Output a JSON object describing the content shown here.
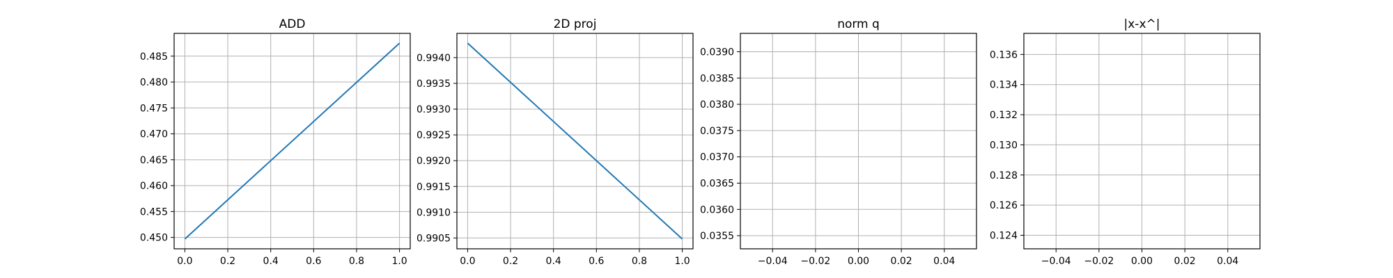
{
  "chart_data": [
    {
      "type": "line",
      "title": "ADD",
      "xlabel": "",
      "ylabel": "",
      "grid": true,
      "x": [
        0.0,
        1.0
      ],
      "series": [
        {
          "values": [
            0.4497,
            0.4875
          ],
          "color": "#1f77b4"
        }
      ],
      "xlim": [
        -0.05,
        1.05
      ],
      "ylim": [
        0.4478,
        0.4894
      ],
      "xticks": [
        "0.0",
        "0.2",
        "0.4",
        "0.6",
        "0.8",
        "1.0"
      ],
      "yticks": [
        "0.450",
        "0.455",
        "0.460",
        "0.465",
        "0.470",
        "0.475",
        "0.480",
        "0.485"
      ]
    },
    {
      "type": "line",
      "title": "2D proj",
      "xlabel": "",
      "ylabel": "",
      "grid": true,
      "x": [
        0.0,
        1.0
      ],
      "series": [
        {
          "values": [
            0.99428,
            0.99048
          ],
          "color": "#1f77b4"
        }
      ],
      "xlim": [
        -0.05,
        1.05
      ],
      "ylim": [
        0.99029,
        0.99447
      ],
      "xticks": [
        "0.0",
        "0.2",
        "0.4",
        "0.6",
        "0.8",
        "1.0"
      ],
      "yticks": [
        "0.9905",
        "0.9910",
        "0.9915",
        "0.9920",
        "0.9925",
        "0.9930",
        "0.9935",
        "0.9940"
      ]
    },
    {
      "type": "line",
      "title": "norm q",
      "xlabel": "",
      "ylabel": "",
      "grid": true,
      "x": [],
      "series": [],
      "xlim": [
        -0.055,
        0.055
      ],
      "ylim": [
        0.03525,
        0.03935
      ],
      "xticks": [
        "−0.04",
        "−0.02",
        "0.00",
        "0.02",
        "0.04"
      ],
      "yticks": [
        "0.0355",
        "0.0360",
        "0.0365",
        "0.0370",
        "0.0375",
        "0.0380",
        "0.0385",
        "0.0390"
      ]
    },
    {
      "type": "line",
      "title": "|x-x^|",
      "xlabel": "",
      "ylabel": "",
      "grid": true,
      "x": [],
      "series": [],
      "xlim": [
        -0.055,
        0.055
      ],
      "ylim": [
        0.1231,
        0.1374
      ],
      "xticks": [
        "−0.04",
        "−0.02",
        "0.00",
        "0.02",
        "0.04"
      ],
      "yticks": [
        "0.124",
        "0.126",
        "0.128",
        "0.130",
        "0.132",
        "0.134",
        "0.136"
      ]
    }
  ]
}
